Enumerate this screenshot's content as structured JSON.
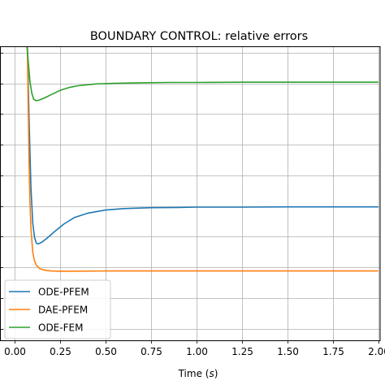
{
  "chart_data": {
    "type": "line",
    "title": "BOUNDARY CONTROL: relative errors",
    "xlabel_prefix": "Time (",
    "xlabel_var": "s",
    "xlabel_suffix": ")",
    "xlim": [
      -0.08,
      2.01
    ],
    "ylim": [
      0,
      1
    ],
    "x_ticks": [
      "0.00",
      "0.25",
      "0.50",
      "0.75",
      "1.00",
      "1.25",
      "1.50",
      "1.75",
      "2.00"
    ],
    "x_tick_values": [
      0,
      0.25,
      0.5,
      0.75,
      1.0,
      1.25,
      1.5,
      1.75,
      2.0
    ],
    "y_gridlines": [
      0.04,
      0.144,
      0.248,
      0.353,
      0.457,
      0.561,
      0.665,
      0.77,
      0.874,
      0.978
    ],
    "grid": true,
    "legend_position": "lower-left",
    "series": [
      {
        "name": "ODE-PFEM",
        "color": "#1f77b4",
        "x": [
          0.07,
          0.08,
          0.09,
          0.1,
          0.11,
          0.12,
          0.13,
          0.15,
          0.18,
          0.22,
          0.27,
          0.33,
          0.4,
          0.5,
          0.6,
          0.75,
          0.9,
          1.0,
          1.25,
          1.5,
          1.75,
          2.0
        ],
        "y": [
          1.02,
          0.75,
          0.52,
          0.4,
          0.35,
          0.33,
          0.328,
          0.334,
          0.348,
          0.37,
          0.395,
          0.418,
          0.432,
          0.443,
          0.448,
          0.451,
          0.452,
          0.453,
          0.453,
          0.454,
          0.454,
          0.454
        ]
      },
      {
        "name": "DAE-PFEM",
        "color": "#ff7f0e",
        "x": [
          0.07,
          0.075,
          0.08,
          0.085,
          0.09,
          0.1,
          0.11,
          0.12,
          0.14,
          0.17,
          0.2,
          0.25,
          0.3,
          0.5,
          1.0,
          1.5,
          2.0
        ],
        "y": [
          1.02,
          0.8,
          0.6,
          0.47,
          0.38,
          0.3,
          0.27,
          0.255,
          0.243,
          0.238,
          0.236,
          0.235,
          0.235,
          0.236,
          0.236,
          0.236,
          0.236
        ]
      },
      {
        "name": "ODE-FEM",
        "color": "#2ca02c",
        "x": [
          0.065,
          0.075,
          0.085,
          0.095,
          0.105,
          0.12,
          0.14,
          0.17,
          0.2,
          0.25,
          0.3,
          0.35,
          0.45,
          0.55,
          0.7,
          0.85,
          1.0,
          1.25,
          1.5,
          1.75,
          2.0
        ],
        "y": [
          1.02,
          0.95,
          0.88,
          0.84,
          0.82,
          0.815,
          0.818,
          0.826,
          0.835,
          0.85,
          0.86,
          0.866,
          0.872,
          0.874,
          0.876,
          0.877,
          0.877,
          0.878,
          0.878,
          0.878,
          0.878
        ]
      }
    ]
  }
}
